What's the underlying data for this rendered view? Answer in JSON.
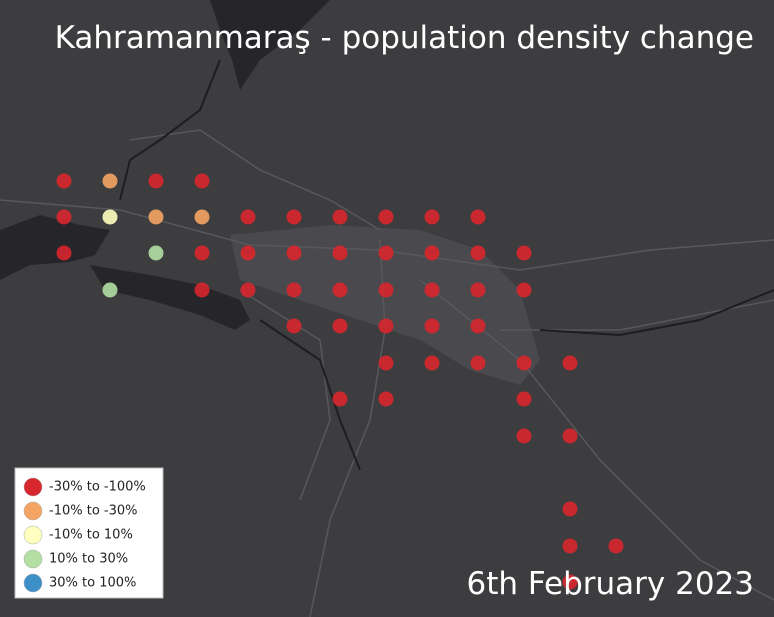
{
  "title": "Kahramanmaraş - population density change",
  "date": "6th February 2023",
  "legend": [
    {
      "label": "-30% to -100%",
      "color": "#d7262c"
    },
    {
      "label": "-10% to -30%",
      "color": "#f4a463"
    },
    {
      "label": "-10% to 10%",
      "color": "#ffffbf"
    },
    {
      "label": "10% to 30%",
      "color": "#b3dfa3"
    },
    {
      "label": "30% to 100%",
      "color": "#3d8fc7"
    }
  ]
}
